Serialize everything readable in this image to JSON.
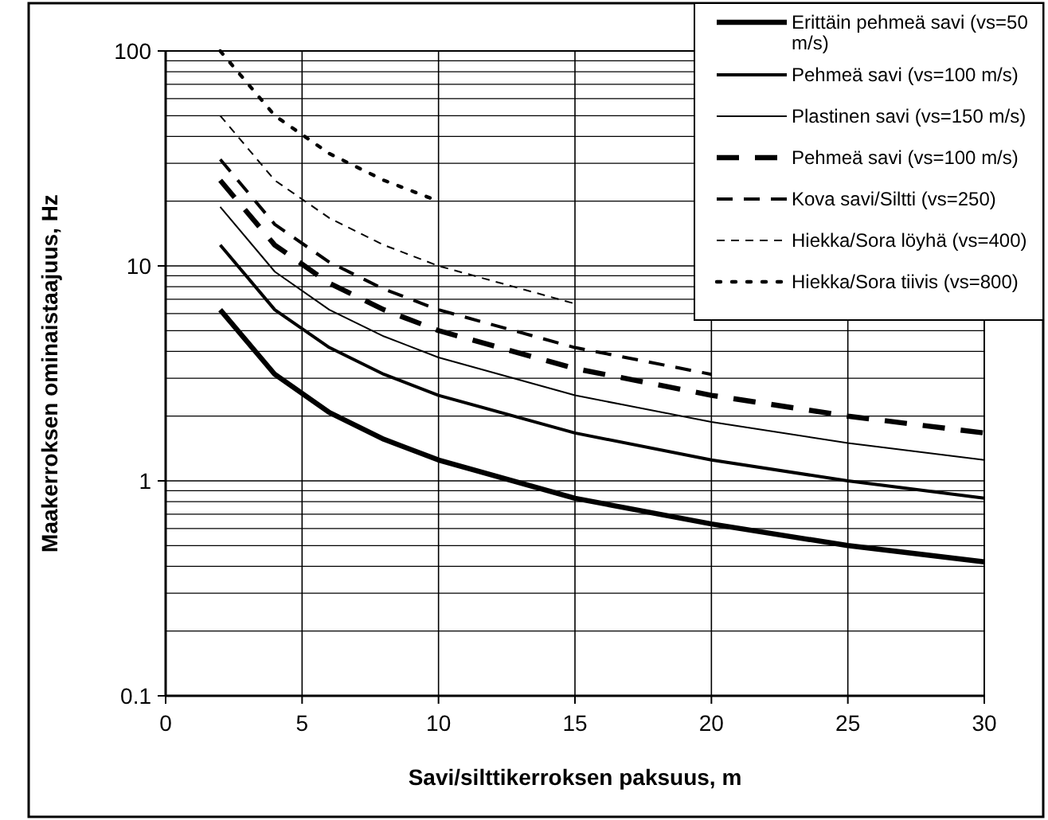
{
  "chart_data": {
    "type": "line",
    "xlabel": "Savi/silttikerroksen paksuus, m",
    "ylabel": "Maakerroksen ominaistaajuus, Hz",
    "log": "y",
    "grid": true,
    "legend": "top right",
    "xlim": [
      0,
      30
    ],
    "ylim": [
      0.1,
      100
    ],
    "xticks": [
      0,
      5,
      10,
      15,
      20,
      25,
      30
    ],
    "yticks": [
      0.1,
      1,
      10,
      100
    ],
    "series": [
      {
        "name": "Erittäin pehmeä savi (vs=50 m/s)",
        "color": "#000000",
        "line_style": "solid",
        "x": [
          2,
          4,
          6,
          8,
          10,
          15,
          20,
          25,
          30
        ],
        "values": [
          6.25,
          3.13,
          2.08,
          1.56,
          1.25,
          0.83,
          0.63,
          0.5,
          0.42
        ]
      },
      {
        "name": "Pehmeä savi (vs=100 m/s)",
        "color": "#000000",
        "line_style": "solid",
        "x": [
          2,
          4,
          6,
          8,
          10,
          15,
          20,
          25,
          30
        ],
        "values": [
          12.5,
          6.25,
          4.17,
          3.13,
          2.5,
          1.67,
          1.25,
          1,
          0.83
        ]
      },
      {
        "name": "Plastinen savi (vs=150 m/s)",
        "color": "#000000",
        "line_style": "solid",
        "x": [
          2,
          4,
          6,
          8,
          10,
          15,
          20,
          25,
          30
        ],
        "values": [
          18.8,
          9.4,
          6.25,
          4.7,
          3.75,
          2.5,
          1.88,
          1.5,
          1.25
        ]
      },
      {
        "name": "Pehmeä savi (vs=100 m/s)",
        "color": "#000000",
        "line_style": "dashed",
        "x": [
          2,
          4,
          6,
          8,
          10,
          15,
          20,
          25,
          30
        ],
        "values": [
          25,
          12.5,
          8.3,
          6.25,
          5,
          3.33,
          2.5,
          2,
          1.67
        ]
      },
      {
        "name": "Kova savi/Siltti (vs=250)",
        "color": "#000000",
        "line_style": "dashed",
        "x": [
          2,
          4,
          6,
          8,
          10,
          15,
          20
        ],
        "values": [
          31.3,
          15.6,
          10.4,
          7.8,
          6.25,
          4.17,
          3.13
        ]
      },
      {
        "name": "Hiekka/Sora löyhä (vs=400)",
        "color": "#000000",
        "line_style": "dashed",
        "x": [
          2,
          4,
          6,
          8,
          10,
          15
        ],
        "values": [
          50,
          25,
          16.7,
          12.5,
          10,
          6.67
        ]
      },
      {
        "name": "Hiekka/Sora tiivis (vs=800)",
        "color": "#000000",
        "line_style": "dotted",
        "x": [
          2,
          4,
          6,
          8,
          10
        ],
        "values": [
          100,
          50,
          33.3,
          25,
          20
        ]
      }
    ]
  }
}
